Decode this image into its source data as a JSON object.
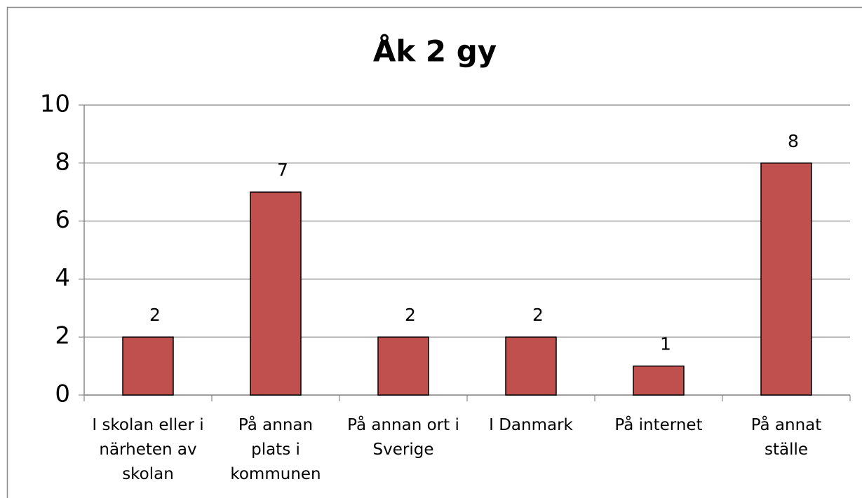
{
  "chart_data": {
    "type": "bar",
    "title": "Åk 2 gy",
    "categories": [
      "I skolan eller i\nnärheten av\nskolan",
      "På annan\nplats i\nkommunen",
      "På annan ort i\nSverige",
      "I Danmark",
      "På internet",
      "På annat\nställe"
    ],
    "values": [
      2,
      7,
      2,
      2,
      1,
      8
    ],
    "color": "#c0504d",
    "ylim": [
      0,
      10
    ],
    "yticks": [
      0,
      2,
      4,
      6,
      8,
      10
    ],
    "grid": true
  }
}
